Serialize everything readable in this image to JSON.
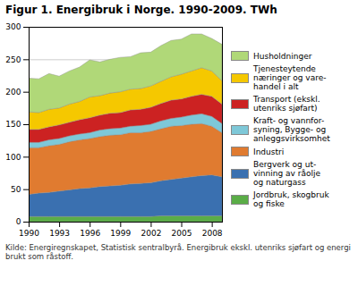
{
  "chart_data": {
    "type": "area",
    "stacked": true,
    "title": "Figur 1. Energibruk i Norge. 1990-2009. TWh",
    "caption": "Kilde: Energiregnskapet, Statistisk sentralbyrå. Energibruk ekskl. utenriks sjøfart og energi\nbrukt som råstoff.",
    "x": [
      1990,
      1991,
      1992,
      1993,
      1994,
      1995,
      1996,
      1997,
      1998,
      1999,
      2000,
      2001,
      2002,
      2003,
      2004,
      2005,
      2006,
      2007,
      2008,
      2009
    ],
    "series": [
      {
        "name": "Jordbruk, skogbruk\nog fiske",
        "color": "#5aad47",
        "values": [
          8,
          8,
          8,
          8,
          8,
          8,
          8,
          8,
          8,
          8,
          8,
          8,
          8,
          9,
          9,
          9,
          9,
          9,
          9,
          9
        ]
      },
      {
        "name": "Bergverk og ut-\nvinning av råolje\nog naturgass",
        "color": "#3a70b0",
        "values": [
          34,
          36,
          37,
          39,
          41,
          43,
          44,
          46,
          47,
          48,
          50,
          51,
          52,
          54,
          56,
          58,
          60,
          62,
          63,
          60
        ]
      },
      {
        "name": "Industri",
        "color": "#e07b30",
        "values": [
          72,
          70,
          72,
          72,
          74,
          75,
          76,
          77,
          78,
          78,
          79,
          78,
          79,
          80,
          82,
          81,
          81,
          80,
          75,
          68
        ]
      },
      {
        "name": "Kraft- og vannfor-\nsyning, Bygge- og\nanleggsvirksomhet",
        "color": "#7ec8d8",
        "values": [
          8,
          8,
          9,
          9,
          9,
          9,
          9,
          10,
          10,
          10,
          10,
          11,
          11,
          12,
          12,
          13,
          14,
          15,
          15,
          14
        ]
      },
      {
        "name": "Transport (ekskl.\nutenriks sjøfart)",
        "color": "#cc2222",
        "values": [
          20,
          20,
          20,
          21,
          21,
          22,
          23,
          23,
          24,
          24,
          25,
          25,
          26,
          27,
          28,
          28,
          29,
          30,
          31,
          30
        ]
      },
      {
        "name": "Tjenesteytende\nnæringer og vare-\nhandel i alt",
        "color": "#f5c800",
        "values": [
          27,
          26,
          27,
          26,
          28,
          28,
          32,
          30,
          31,
          32,
          32,
          32,
          33,
          34,
          36,
          38,
          39,
          41,
          39,
          36
        ]
      },
      {
        "name": "Husholdninger",
        "color": "#b0d878",
        "values": [
          52,
          52,
          55,
          49,
          51,
          53,
          57,
          52,
          52,
          53,
          50,
          55,
          52,
          55,
          56,
          54,
          57,
          52,
          50,
          56
        ]
      }
    ],
    "xlim": [
      1990,
      2009
    ],
    "xticks": [
      1990,
      1993,
      1996,
      1999,
      2002,
      2005,
      2008
    ],
    "ylim": [
      0,
      300
    ],
    "yticks": [
      0,
      50,
      100,
      150,
      200,
      250,
      300
    ],
    "grid": true,
    "legend": "right"
  }
}
